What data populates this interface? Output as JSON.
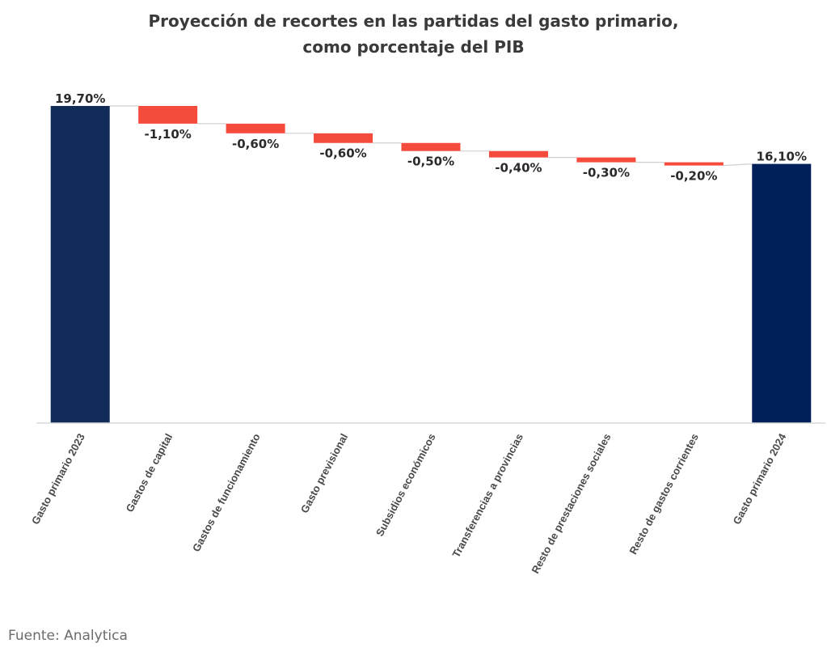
{
  "title": {
    "line1": "Proyección de recortes en las partidas del gasto primario,",
    "line2": "como porcentaje del PIB"
  },
  "source": "Fuente: Analytica",
  "colors": {
    "total_start": "#122c5a",
    "total_end": "#001f5b",
    "decrease": "#f54b3c",
    "connector": "#d0d0d0",
    "axis": "#d9d9d9"
  },
  "chart_data": {
    "type": "waterfall",
    "title": "Proyección de recortes en las partidas del gasto primario, como porcentaje del PIB",
    "categories": [
      "Gasto primario 2023",
      "Gastos de capital",
      "Gastos de funcionamiento",
      "Gasto previsional",
      "Subsidios económicos",
      "Transferencias a provincias",
      "Resto de prestaciones sociales",
      "Resto de gastos corrientes",
      "Gasto primario 2024"
    ],
    "values": [
      19.7,
      -1.1,
      -0.6,
      -0.6,
      -0.5,
      -0.4,
      -0.3,
      -0.2,
      16.1
    ],
    "kinds": [
      "total",
      "delta",
      "delta",
      "delta",
      "delta",
      "delta",
      "delta",
      "delta",
      "total"
    ],
    "labels": [
      "19,70%",
      "-1,10%",
      "-0,60%",
      "-0,60%",
      "-0,50%",
      "-0,40%",
      "-0,30%",
      "-0,20%",
      "16,10%"
    ],
    "ylim": [
      0,
      20
    ],
    "unit": "% del PIB",
    "xlabel": "",
    "ylabel": "",
    "grid": false,
    "legend": "none"
  }
}
